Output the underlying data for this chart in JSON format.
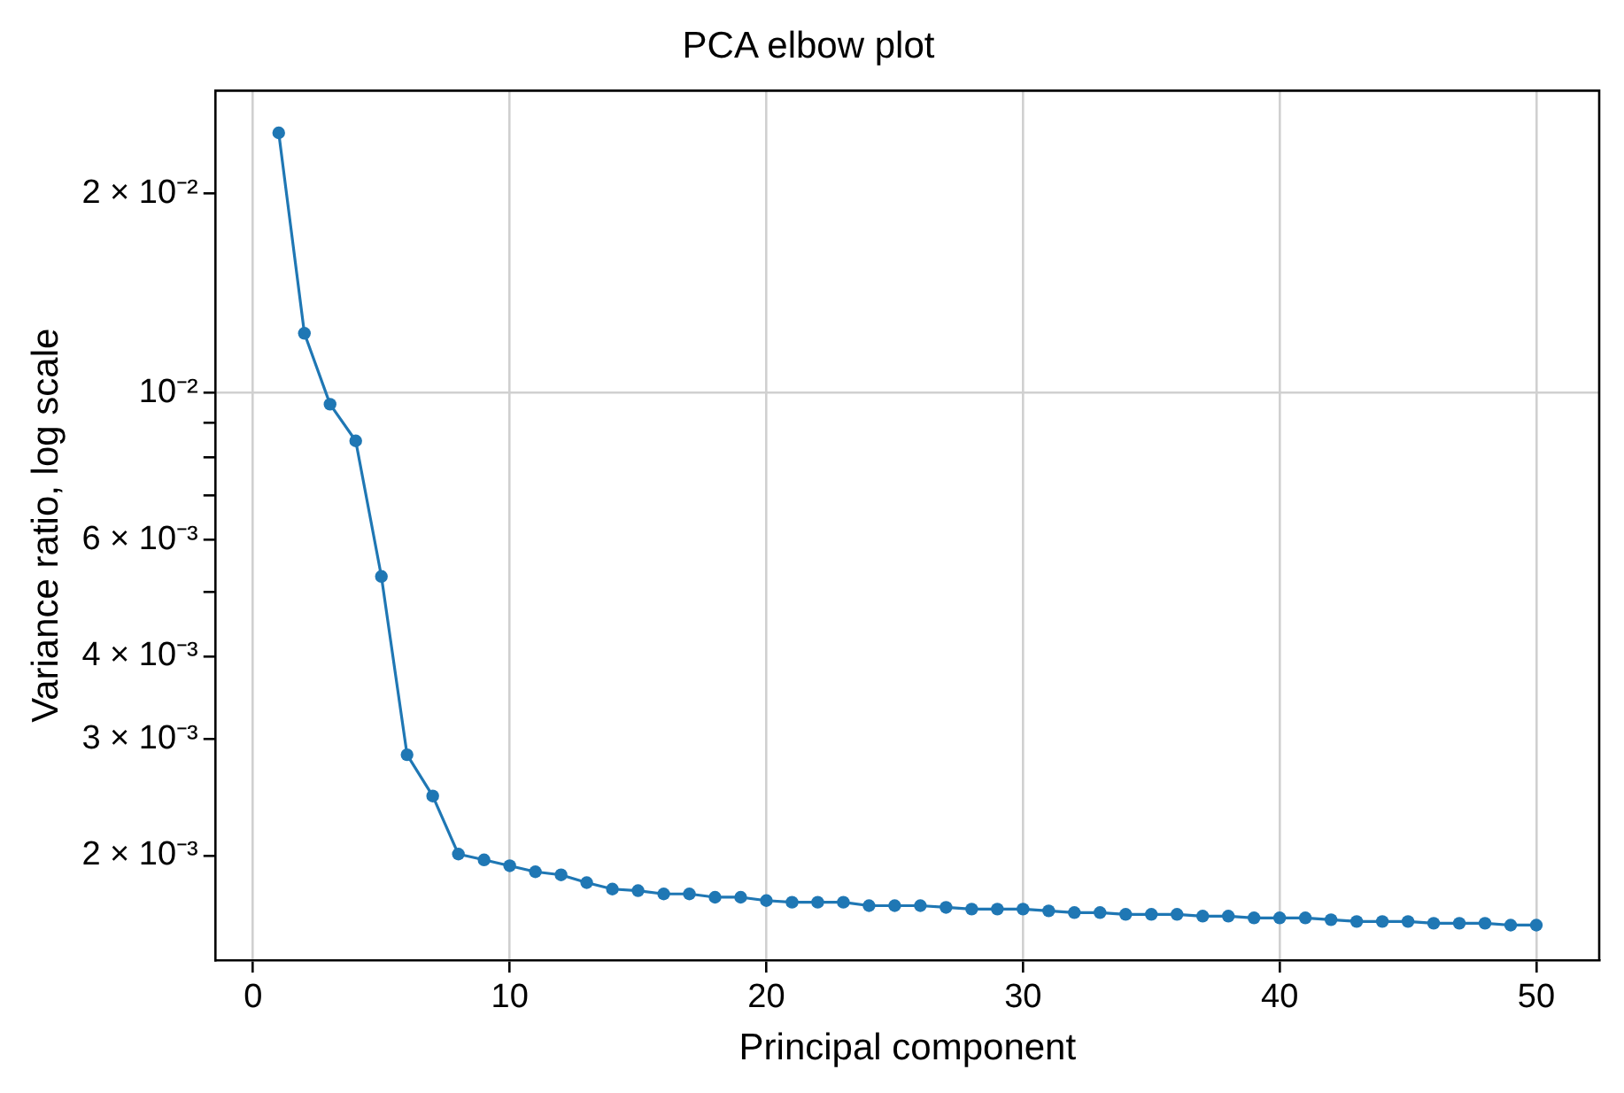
{
  "chart_data": {
    "type": "line",
    "title": "PCA elbow plot",
    "xlabel": "Principal component",
    "ylabel": "Variance ratio, log scale",
    "x": [
      1,
      2,
      3,
      4,
      5,
      6,
      7,
      8,
      9,
      10,
      11,
      12,
      13,
      14,
      15,
      16,
      17,
      18,
      19,
      20,
      21,
      22,
      23,
      24,
      25,
      26,
      27,
      28,
      29,
      30,
      31,
      32,
      33,
      34,
      35,
      36,
      37,
      38,
      39,
      40,
      41,
      42,
      43,
      44,
      45,
      46,
      47,
      48,
      49,
      50
    ],
    "series": [
      {
        "color": "#1f77b4",
        "values": [
          0.0247,
          0.0123,
          0.00961,
          0.00846,
          0.00528,
          0.00284,
          0.00246,
          0.00201,
          0.00197,
          0.00193,
          0.00189,
          0.00187,
          0.00182,
          0.00178,
          0.00177,
          0.00175,
          0.00175,
          0.00173,
          0.00173,
          0.00171,
          0.0017,
          0.0017,
          0.0017,
          0.00168,
          0.00168,
          0.00168,
          0.00167,
          0.00166,
          0.00166,
          0.00166,
          0.00165,
          0.00164,
          0.00164,
          0.00163,
          0.00163,
          0.00163,
          0.00162,
          0.00162,
          0.00161,
          0.00161,
          0.00161,
          0.0016,
          0.00159,
          0.00159,
          0.00159,
          0.00158,
          0.00158,
          0.00158,
          0.00157,
          0.00157
        ]
      }
    ],
    "xlim": [
      -1.45,
      52.45
    ],
    "xticks": [
      0,
      10,
      20,
      30,
      40,
      50
    ],
    "ylim": [
      0.00139,
      0.0286
    ],
    "yticks": [
      {
        "value": 0.002,
        "label": "2 × 10⁻³"
      },
      {
        "value": 0.003,
        "label": "3 × 10⁻³"
      },
      {
        "value": 0.004,
        "label": "4 × 10⁻³"
      },
      {
        "value": 0.005,
        "label": null
      },
      {
        "value": 0.006,
        "label": "6 × 10⁻³"
      },
      {
        "value": 0.007,
        "label": null
      },
      {
        "value": 0.008,
        "label": null
      },
      {
        "value": 0.009,
        "label": null
      },
      {
        "value": 0.01,
        "label": "10⁻²"
      },
      {
        "value": 0.02,
        "label": "2 × 10⁻²"
      }
    ],
    "log": "y",
    "grid": true,
    "marker": "circle",
    "line_style": "solid",
    "legend": false
  }
}
